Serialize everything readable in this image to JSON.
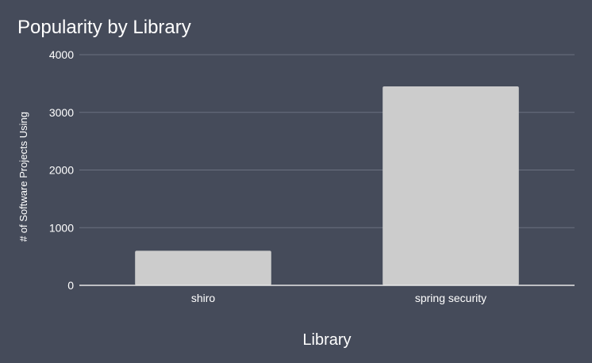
{
  "chart_data": {
    "type": "bar",
    "title": "Popularity by Library",
    "xlabel": "Library",
    "ylabel": "# of Software Projects Using",
    "categories": [
      "shiro",
      "spring security"
    ],
    "values": [
      600,
      3450
    ],
    "ylim": [
      0,
      4000
    ],
    "yticks": [
      "0",
      "1000",
      "2000",
      "3000",
      "4000"
    ],
    "grid": true,
    "legend": "none",
    "colors": {
      "background": "#454b5a",
      "bar": "#cccccc",
      "text": "#ffffff",
      "grid": "#6b7180",
      "axis": "#e6e6e6"
    }
  }
}
